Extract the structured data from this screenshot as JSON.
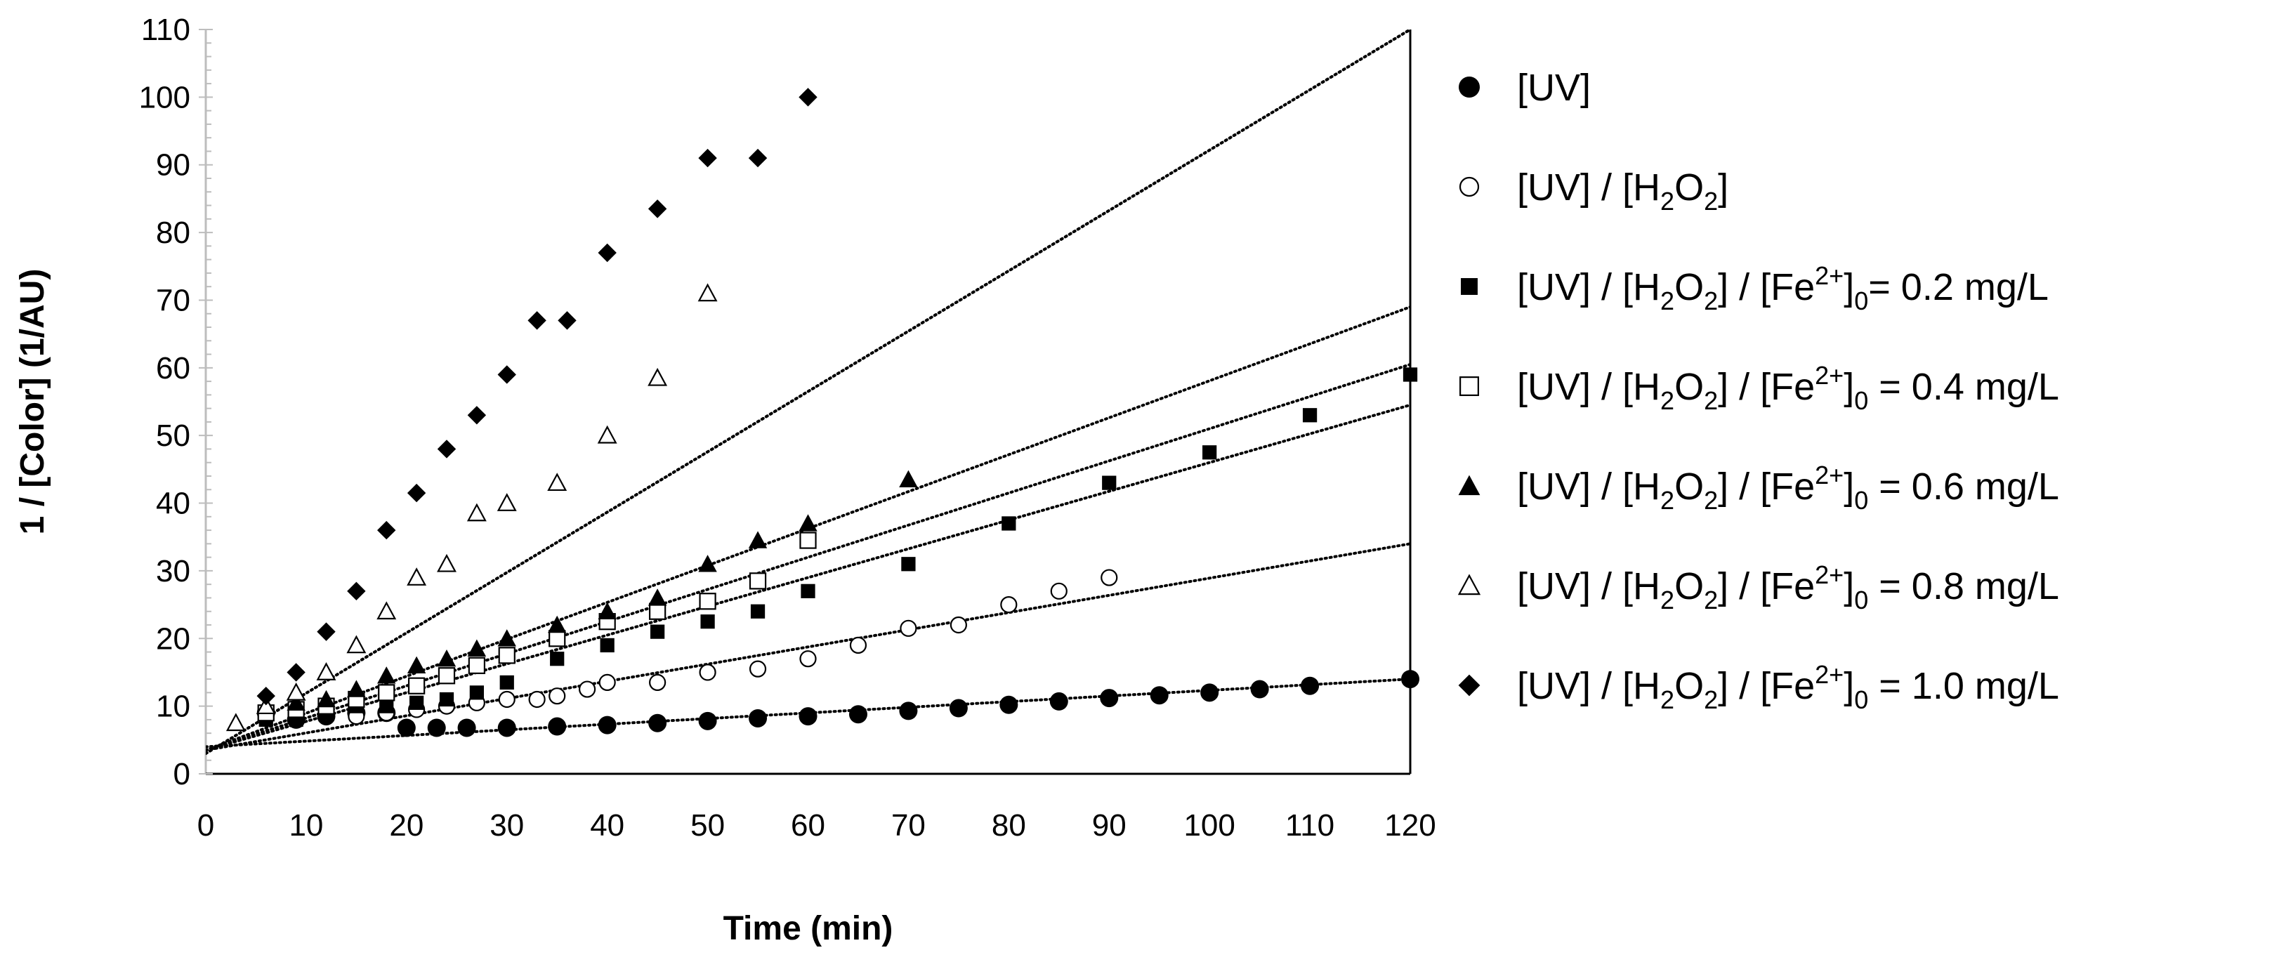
{
  "chart_data": {
    "type": "scatter",
    "title": "",
    "xlabel": "Time (min)",
    "ylabel": "1 / [Color] (1/AU)",
    "xlim": [
      0,
      120
    ],
    "ylim": [
      0,
      110
    ],
    "xticks": [
      0,
      10,
      20,
      30,
      40,
      50,
      60,
      70,
      80,
      90,
      100,
      110,
      120
    ],
    "yticks": [
      0,
      10,
      20,
      30,
      40,
      50,
      60,
      70,
      80,
      90,
      100,
      110
    ],
    "trendline_style": "dotted linear",
    "legend_position": "right",
    "series": [
      {
        "name": "[UV]",
        "legend_parts": [
          "[UV]"
        ],
        "marker": "circle-filled",
        "x": [
          6,
          9,
          12,
          15,
          18,
          20,
          23,
          26,
          30,
          35,
          40,
          45,
          50,
          55,
          60,
          65,
          70,
          75,
          80,
          85,
          90,
          95,
          100,
          105,
          110,
          120
        ],
        "y": [
          9,
          8,
          8.5,
          9,
          9,
          6.8,
          6.8,
          6.8,
          6.8,
          7,
          7.2,
          7.5,
          7.8,
          8.2,
          8.5,
          8.8,
          9.3,
          9.7,
          10.2,
          10.7,
          11.2,
          11.6,
          12,
          12.5,
          13,
          14
        ],
        "trend": [
          4,
          14
        ]
      },
      {
        "name": "[UV] / [H2O2]",
        "legend_parts": [
          "[UV] / [H",
          "2",
          "O",
          "2",
          "]"
        ],
        "marker": "circle-open",
        "x": [
          9,
          12,
          15,
          18,
          21,
          24,
          27,
          30,
          33,
          35,
          38,
          40,
          45,
          50,
          55,
          60,
          65,
          70,
          75,
          80,
          85,
          90
        ],
        "y": [
          8,
          9,
          8.5,
          9,
          9.5,
          10,
          10.5,
          11,
          11,
          11.5,
          12.5,
          13.5,
          13.5,
          15,
          15.5,
          17,
          19,
          21.5,
          22,
          25,
          27,
          29
        ],
        "trend": [
          3.5,
          34
        ]
      },
      {
        "name": "[UV] / [H2O2] / [Fe2+]0= 0.2 mg/L",
        "legend_parts": [
          "[UV] / [H",
          "2",
          "O",
          "2",
          "] / [Fe",
          "2+",
          "]",
          "0",
          "= 0.2 mg/L"
        ],
        "marker": "square-filled",
        "x": [
          6,
          9,
          12,
          15,
          18,
          21,
          24,
          27,
          30,
          35,
          40,
          45,
          50,
          55,
          60,
          70,
          80,
          90,
          100,
          110,
          120
        ],
        "y": [
          8,
          8,
          9,
          10,
          10,
          10.5,
          11,
          12,
          13.5,
          17,
          19,
          21,
          22.5,
          24,
          27,
          31,
          37,
          43,
          47.5,
          53,
          59
        ],
        "trend": [
          3.5,
          54.5
        ]
      },
      {
        "name": "[UV] / [H2O2] / [Fe2+]0 = 0.4 mg/L",
        "legend_parts": [
          "[UV] / [H",
          "2",
          "O",
          "2",
          "] / [Fe",
          "2+",
          "]",
          "0",
          " = 0.4 mg/L"
        ],
        "marker": "square-open",
        "x": [
          6,
          9,
          12,
          15,
          18,
          21,
          24,
          27,
          30,
          35,
          40,
          45,
          50,
          55,
          60
        ],
        "y": [
          9,
          9.5,
          10,
          11,
          12,
          13,
          14.5,
          16,
          17.5,
          20,
          22.5,
          24,
          25.5,
          28.5,
          34.5
        ],
        "trend": [
          3.5,
          60.5
        ]
      },
      {
        "name": "[UV] / [H2O2] / [Fe2+]0 = 0.6 mg/L",
        "legend_parts": [
          "[UV] / [H",
          "2",
          "O",
          "2",
          "] / [Fe",
          "2+",
          "]",
          "0",
          " = 0.6 mg/L"
        ],
        "marker": "triangle-filled",
        "x": [
          6,
          9,
          12,
          15,
          18,
          21,
          24,
          27,
          30,
          35,
          40,
          45,
          50,
          55,
          60,
          70
        ],
        "y": [
          10,
          10.5,
          11,
          12.5,
          14.5,
          16,
          17,
          18.5,
          20,
          22,
          24,
          26,
          31,
          34.5,
          37,
          43.5
        ],
        "trend": [
          3.5,
          69
        ]
      },
      {
        "name": "[UV] / [H2O2] / [Fe2+]0 = 0.8 mg/L",
        "legend_parts": [
          "[UV] / [H",
          "2",
          "O",
          "2",
          "] / [Fe",
          "2+",
          "]",
          "0",
          " = 0.8 mg/L"
        ],
        "marker": "triangle-open",
        "x": [
          3,
          6,
          9,
          12,
          15,
          18,
          21,
          24,
          27,
          30,
          35,
          40,
          45,
          50
        ],
        "y": [
          7.5,
          10,
          12,
          15,
          19,
          24,
          29,
          31,
          38.5,
          40,
          43,
          50,
          58.5,
          71
        ],
        "trend": [
          3,
          110
        ]
      },
      {
        "name": "[UV] / [H2O2] / [Fe2+]0 = 1.0 mg/L",
        "legend_parts": [
          "[UV] / [H",
          "2",
          "O",
          "2",
          "] / [Fe",
          "2+",
          "]",
          "0",
          " = 1.0 mg/L"
        ],
        "marker": "diamond-filled",
        "x": [
          6,
          9,
          12,
          15,
          18,
          21,
          24,
          27,
          30,
          33,
          36,
          40,
          45,
          50,
          55,
          60
        ],
        "y": [
          11.5,
          15,
          21,
          27,
          36,
          41.5,
          48,
          53,
          59,
          67,
          67,
          77,
          83.5,
          91,
          91,
          100
        ],
        "trend": [
          3,
          110
        ]
      }
    ]
  }
}
